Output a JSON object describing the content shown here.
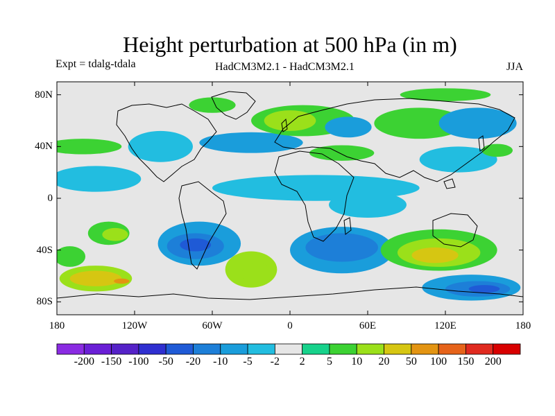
{
  "header": {
    "title": "Height perturbation at 500 hPa (in m)",
    "left_label": "Expt = tdalg-tdala",
    "center_label": "HadCM3M2.1 - HadCM3M2.1",
    "right_label": "JJA"
  },
  "chart_data": {
    "type": "heatmap",
    "title": "Height perturbation at 500 hPa (in m)",
    "xlabel": "",
    "ylabel": "",
    "xlim": [
      -180,
      180
    ],
    "ylim": [
      -90,
      90
    ],
    "x_ticks": [
      {
        "value": -180,
        "label": "180"
      },
      {
        "value": -120,
        "label": "120W"
      },
      {
        "value": -60,
        "label": "60W"
      },
      {
        "value": 0,
        "label": "0"
      },
      {
        "value": 60,
        "label": "60E"
      },
      {
        "value": 120,
        "label": "120E"
      },
      {
        "value": 180,
        "label": "180"
      }
    ],
    "y_ticks": [
      {
        "value": 80,
        "label": "80N"
      },
      {
        "value": 40,
        "label": "40N"
      },
      {
        "value": 0,
        "label": "0"
      },
      {
        "value": -40,
        "label": "40S"
      },
      {
        "value": -80,
        "label": "80S"
      }
    ],
    "colorbar": {
      "levels": [
        "-200",
        "-150",
        "-100",
        "-50",
        "-20",
        "-10",
        "-5",
        "-2",
        "2",
        "5",
        "10",
        "20",
        "50",
        "100",
        "150",
        "200"
      ],
      "colors": [
        "#8a2be2",
        "#6a1fd6",
        "#5522c8",
        "#2f2fd0",
        "#1f5ad6",
        "#1d7fd8",
        "#1a9ddb",
        "#22bde0",
        "#e6e6e6",
        "#17d28b",
        "#3cd233",
        "#9be01a",
        "#d6c612",
        "#e39412",
        "#e6631a",
        "#e02a1f",
        "#d80000"
      ]
    },
    "blobs": [
      {
        "lon": -150,
        "lat": -62,
        "rx": 28,
        "ry": 10,
        "value": 15
      },
      {
        "lon": -150,
        "lat": -62,
        "rx": 20,
        "ry": 6,
        "value": 30
      },
      {
        "lon": -130,
        "lat": -64,
        "rx": 6,
        "ry": 2,
        "value": 60
      },
      {
        "lon": -140,
        "lat": -27,
        "rx": 16,
        "ry": 9,
        "value": 8
      },
      {
        "lon": -135,
        "lat": -28,
        "rx": 10,
        "ry": 5,
        "value": 15
      },
      {
        "lon": -30,
        "lat": -55,
        "rx": 20,
        "ry": 14,
        "value": 10
      },
      {
        "lon": -25,
        "lat": -58,
        "rx": 12,
        "ry": 8,
        "value": 18
      },
      {
        "lon": -70,
        "lat": -35,
        "rx": 32,
        "ry": 17,
        "value": -8
      },
      {
        "lon": -73,
        "lat": -37,
        "rx": 22,
        "ry": 10,
        "value": -15
      },
      {
        "lon": -73,
        "lat": -36,
        "rx": 12,
        "ry": 5,
        "value": -30
      },
      {
        "lon": 40,
        "lat": -40,
        "rx": 40,
        "ry": 18,
        "value": -6
      },
      {
        "lon": 40,
        "lat": -38,
        "rx": 28,
        "ry": 11,
        "value": -12
      },
      {
        "lon": 115,
        "lat": -40,
        "rx": 45,
        "ry": 16,
        "value": 8
      },
      {
        "lon": 115,
        "lat": -42,
        "rx": 32,
        "ry": 11,
        "value": 18
      },
      {
        "lon": 112,
        "lat": -44,
        "rx": 18,
        "ry": 6,
        "value": 35
      },
      {
        "lon": 140,
        "lat": -69,
        "rx": 38,
        "ry": 10,
        "value": -8
      },
      {
        "lon": 145,
        "lat": -70,
        "rx": 25,
        "ry": 6,
        "value": -15
      },
      {
        "lon": 150,
        "lat": -70,
        "rx": 12,
        "ry": 3,
        "value": -30
      },
      {
        "lon": 60,
        "lat": -5,
        "rx": 30,
        "ry": 10,
        "value": -5
      },
      {
        "lon": 20,
        "lat": 8,
        "rx": 80,
        "ry": 10,
        "value": -4
      },
      {
        "lon": -30,
        "lat": 43,
        "rx": 40,
        "ry": 8,
        "value": -6
      },
      {
        "lon": -150,
        "lat": 15,
        "rx": 35,
        "ry": 10,
        "value": -4
      },
      {
        "lon": -160,
        "lat": 40,
        "rx": 30,
        "ry": 6,
        "value": 5
      },
      {
        "lon": 10,
        "lat": 60,
        "rx": 40,
        "ry": 12,
        "value": 6
      },
      {
        "lon": 0,
        "lat": 60,
        "rx": 20,
        "ry": 8,
        "value": 15
      },
      {
        "lon": 45,
        "lat": 55,
        "rx": 18,
        "ry": 8,
        "value": -8
      },
      {
        "lon": 40,
        "lat": 35,
        "rx": 25,
        "ry": 6,
        "value": 8
      },
      {
        "lon": 100,
        "lat": 58,
        "rx": 35,
        "ry": 12,
        "value": 6
      },
      {
        "lon": 145,
        "lat": 58,
        "rx": 30,
        "ry": 12,
        "value": -7
      },
      {
        "lon": 130,
        "lat": 30,
        "rx": 30,
        "ry": 10,
        "value": -5
      },
      {
        "lon": 160,
        "lat": 37,
        "rx": 12,
        "ry": 5,
        "value": 6
      },
      {
        "lon": -100,
        "lat": 40,
        "rx": 25,
        "ry": 12,
        "value": -5
      },
      {
        "lon": -60,
        "lat": 72,
        "rx": 18,
        "ry": 6,
        "value": 6
      },
      {
        "lon": 120,
        "lat": 80,
        "rx": 35,
        "ry": 5,
        "value": 5
      },
      {
        "lon": -170,
        "lat": -45,
        "rx": 12,
        "ry": 8,
        "value": 5
      }
    ]
  }
}
